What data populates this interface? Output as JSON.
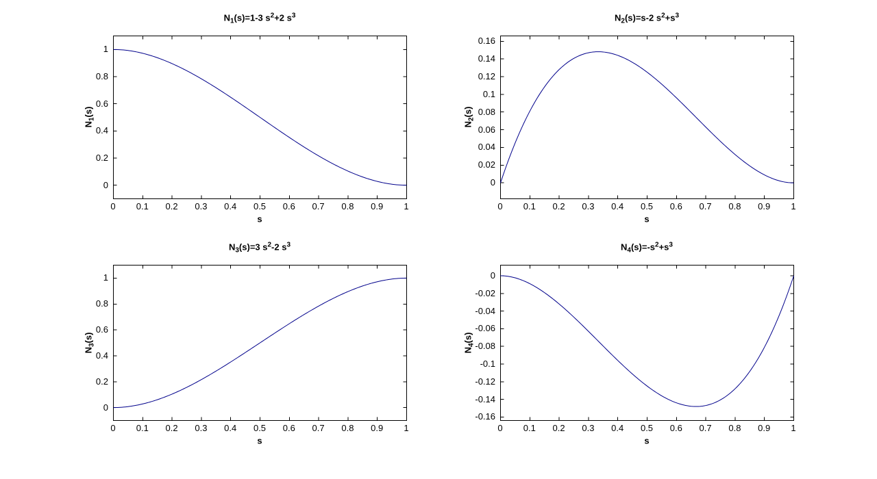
{
  "figure": {
    "background_color": "#ffffff",
    "axis_color": "#000000",
    "text_color": "#000000",
    "line_color": "#00008b"
  },
  "chart_data": [
    {
      "type": "line",
      "title": "N_1(s)=1-3 s^2+2 s^3",
      "title_parts": [
        [
          "t",
          "N"
        ],
        [
          "sub",
          "1"
        ],
        [
          "t",
          "(s)=1-3 s"
        ],
        [
          "sup",
          "2"
        ],
        [
          "t",
          "+2 s"
        ],
        [
          "sup",
          "3"
        ]
      ],
      "xlabel": "s",
      "ylabel": "N_1(s)",
      "ylabel_parts": [
        [
          "t",
          "N"
        ],
        [
          "sub",
          "1"
        ],
        [
          "t",
          "(s)"
        ]
      ],
      "xlim": [
        0,
        1
      ],
      "ylim": [
        -0.1,
        1.1
      ],
      "xtick_values": [
        0,
        0.1,
        0.2,
        0.3,
        0.4,
        0.5,
        0.6,
        0.7,
        0.8,
        0.9,
        1
      ],
      "xtick_labels": [
        "0",
        "0.1",
        "0.2",
        "0.3",
        "0.4",
        "0.5",
        "0.6",
        "0.7",
        "0.8",
        "0.9",
        "1"
      ],
      "ytick_values": [
        0,
        0.2,
        0.4,
        0.6,
        0.8,
        1
      ],
      "ytick_labels": [
        "0",
        "0.2",
        "0.4",
        "0.6",
        "0.8",
        "1"
      ],
      "coeffs": [
        1,
        0,
        -3,
        2
      ],
      "x": [
        0,
        0.05,
        0.1,
        0.15,
        0.2,
        0.25,
        0.3,
        0.35,
        0.4,
        0.45,
        0.5,
        0.55,
        0.6,
        0.65,
        0.7,
        0.75,
        0.8,
        0.85,
        0.9,
        0.95,
        1
      ],
      "y": [
        1,
        0.99275,
        0.972,
        0.93925,
        0.896,
        0.84375,
        0.784,
        0.71825,
        0.648,
        0.57475,
        0.5,
        0.42525,
        0.352,
        0.28175,
        0.216,
        0.15625,
        0.104,
        0.06075,
        0.028,
        0.00725,
        0
      ]
    },
    {
      "type": "line",
      "title": "N_2(s)=s-2 s^2+s^3",
      "title_parts": [
        [
          "t",
          "N"
        ],
        [
          "sub",
          "2"
        ],
        [
          "t",
          "(s)=s-2 s"
        ],
        [
          "sup",
          "2"
        ],
        [
          "t",
          "+s"
        ],
        [
          "sup",
          "3"
        ]
      ],
      "xlabel": "s",
      "ylabel": "N_2(s)",
      "ylabel_parts": [
        [
          "t",
          "N"
        ],
        [
          "sub",
          "2"
        ],
        [
          "t",
          "(s)"
        ]
      ],
      "xlim": [
        0,
        1
      ],
      "ylim": [
        -0.018,
        0.166
      ],
      "xtick_values": [
        0,
        0.1,
        0.2,
        0.3,
        0.4,
        0.5,
        0.6,
        0.7,
        0.8,
        0.9,
        1
      ],
      "xtick_labels": [
        "0",
        "0.1",
        "0.2",
        "0.3",
        "0.4",
        "0.5",
        "0.6",
        "0.7",
        "0.8",
        "0.9",
        "1"
      ],
      "ytick_values": [
        0,
        0.02,
        0.04,
        0.06,
        0.08,
        0.1,
        0.12,
        0.14,
        0.16
      ],
      "ytick_labels": [
        "0",
        "0.02",
        "0.04",
        "0.06",
        "0.08",
        "0.1",
        "0.12",
        "0.14",
        "0.16"
      ],
      "coeffs": [
        0,
        1,
        -2,
        1
      ],
      "x": [
        0,
        0.05,
        0.1,
        0.15,
        0.2,
        0.25,
        0.3,
        0.35,
        0.4,
        0.45,
        0.5,
        0.55,
        0.6,
        0.65,
        0.7,
        0.75,
        0.8,
        0.85,
        0.9,
        0.95,
        1
      ],
      "y": [
        0,
        0.045125,
        0.081,
        0.108375,
        0.128,
        0.140625,
        0.147,
        0.147875,
        0.144,
        0.136125,
        0.125,
        0.111375,
        0.096,
        0.079625,
        0.063,
        0.046875,
        0.032,
        0.019125,
        0.009,
        0.002375,
        0
      ]
    },
    {
      "type": "line",
      "title": "N_3(s)=3 s^2-2 s^3",
      "title_parts": [
        [
          "t",
          "N"
        ],
        [
          "sub",
          "3"
        ],
        [
          "t",
          "(s)=3 s"
        ],
        [
          "sup",
          "2"
        ],
        [
          "t",
          "-2 s"
        ],
        [
          "sup",
          "3"
        ]
      ],
      "xlabel": "s",
      "ylabel": "N_3(s)",
      "ylabel_parts": [
        [
          "t",
          "N"
        ],
        [
          "sub",
          "3"
        ],
        [
          "t",
          "(s)"
        ]
      ],
      "xlim": [
        0,
        1
      ],
      "ylim": [
        -0.1,
        1.1
      ],
      "xtick_values": [
        0,
        0.1,
        0.2,
        0.3,
        0.4,
        0.5,
        0.6,
        0.7,
        0.8,
        0.9,
        1
      ],
      "xtick_labels": [
        "0",
        "0.1",
        "0.2",
        "0.3",
        "0.4",
        "0.5",
        "0.6",
        "0.7",
        "0.8",
        "0.9",
        "1"
      ],
      "ytick_values": [
        0,
        0.2,
        0.4,
        0.6,
        0.8,
        1
      ],
      "ytick_labels": [
        "0",
        "0.2",
        "0.4",
        "0.6",
        "0.8",
        "1"
      ],
      "coeffs": [
        0,
        0,
        3,
        -2
      ],
      "x": [
        0,
        0.05,
        0.1,
        0.15,
        0.2,
        0.25,
        0.3,
        0.35,
        0.4,
        0.45,
        0.5,
        0.55,
        0.6,
        0.65,
        0.7,
        0.75,
        0.8,
        0.85,
        0.9,
        0.95,
        1
      ],
      "y": [
        0,
        0.00725,
        0.028,
        0.06075,
        0.104,
        0.15625,
        0.216,
        0.28175,
        0.352,
        0.42525,
        0.5,
        0.57475,
        0.648,
        0.71825,
        0.784,
        0.84375,
        0.896,
        0.93925,
        0.972,
        0.99275,
        1
      ]
    },
    {
      "type": "line",
      "title": "N_4(s)=-s^2+s^3",
      "title_parts": [
        [
          "t",
          "N"
        ],
        [
          "sub",
          "4"
        ],
        [
          "t",
          "(s)=-s"
        ],
        [
          "sup",
          "2"
        ],
        [
          "t",
          "+s"
        ],
        [
          "sup",
          "3"
        ]
      ],
      "xlabel": "s",
      "ylabel": "N_4(s)",
      "ylabel_parts": [
        [
          "t",
          "N"
        ],
        [
          "sub",
          "4"
        ],
        [
          "t",
          "(s)"
        ]
      ],
      "xlim": [
        0,
        1
      ],
      "ylim": [
        -0.164,
        0.012
      ],
      "xtick_values": [
        0,
        0.1,
        0.2,
        0.3,
        0.4,
        0.5,
        0.6,
        0.7,
        0.8,
        0.9,
        1
      ],
      "xtick_labels": [
        "0",
        "0.1",
        "0.2",
        "0.3",
        "0.4",
        "0.5",
        "0.6",
        "0.7",
        "0.8",
        "0.9",
        "1"
      ],
      "ytick_values": [
        0,
        -0.02,
        -0.04,
        -0.06,
        -0.08,
        -0.1,
        -0.12,
        -0.14,
        -0.16
      ],
      "ytick_labels": [
        "0",
        "-0.02",
        "-0.04",
        "-0.06",
        "-0.08",
        "-0.1",
        "-0.12",
        "-0.14",
        "-0.16"
      ],
      "coeffs": [
        0,
        0,
        -1,
        1
      ],
      "x": [
        0,
        0.05,
        0.1,
        0.15,
        0.2,
        0.25,
        0.3,
        0.35,
        0.4,
        0.45,
        0.5,
        0.55,
        0.6,
        0.65,
        0.7,
        0.75,
        0.8,
        0.85,
        0.9,
        0.95,
        1
      ],
      "y": [
        0,
        -0.002375,
        -0.009,
        -0.019125,
        -0.032,
        -0.046875,
        -0.063,
        -0.079625,
        -0.096,
        -0.111375,
        -0.125,
        -0.136125,
        -0.144,
        -0.147875,
        -0.147,
        -0.140625,
        -0.128,
        -0.108375,
        -0.081,
        -0.045125,
        0
      ]
    }
  ]
}
